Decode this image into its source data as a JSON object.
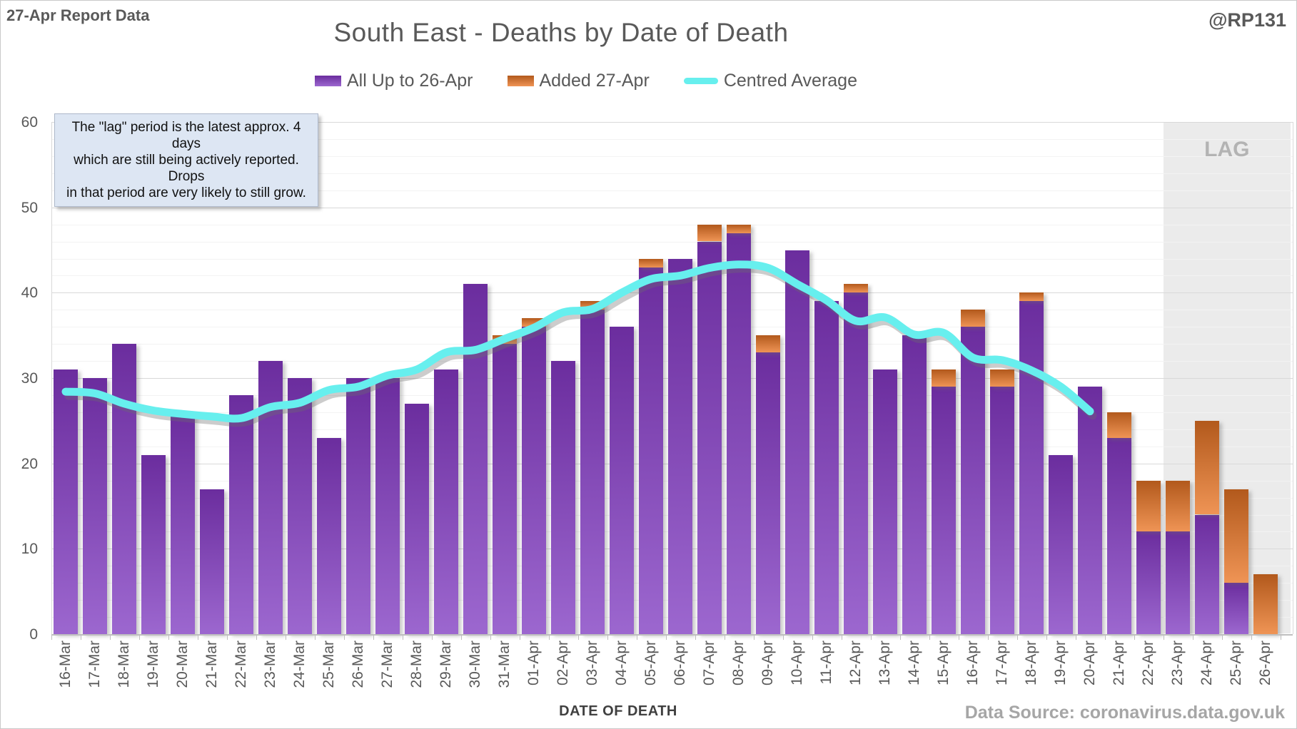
{
  "header": {
    "report_label": "27-Apr Report Data",
    "title": "South East - Deaths by Date of Death",
    "handle": "@RP131"
  },
  "legend": [
    {
      "label": "All Up to 26-Apr",
      "swatch": "purple-bar"
    },
    {
      "label": "Added 27-Apr",
      "swatch": "orange-bar"
    },
    {
      "label": "Centred Average",
      "swatch": "cyan-line"
    }
  ],
  "annotation": {
    "lines": [
      "The \"lag\" period is the latest approx. 4 days",
      "which are still being actively reported.  Drops",
      "in that period are very likely to still grow."
    ]
  },
  "lag": {
    "label": "LAG",
    "start_category": "23-Apr"
  },
  "axes": {
    "x_title": "DATE OF DEATH",
    "y_ticks": [
      0,
      10,
      20,
      30,
      40,
      50,
      60
    ],
    "y_minor_step": 2
  },
  "footer": {
    "source": "Data Source: coronavirus.data.gov.uk"
  },
  "colors": {
    "purple_top": "#6b2d9e",
    "purple_bottom": "#9c67cf",
    "orange_top": "#b2591c",
    "orange_bottom": "#ef9455",
    "cyan_line": "#67efee",
    "grid_major": "#d9d9d9",
    "grid_minor": "#f3f3f3",
    "lag_bg": "#ebebeb",
    "text_gray": "#595959"
  },
  "chart_data": {
    "type": "bar",
    "title": "South East - Deaths by Date of Death",
    "xlabel": "DATE OF DEATH",
    "ylabel": "",
    "ylim": [
      0,
      60
    ],
    "grid": true,
    "legend_position": "top",
    "categories": [
      "16-Mar",
      "17-Mar",
      "18-Mar",
      "19-Mar",
      "20-Mar",
      "21-Mar",
      "22-Mar",
      "23-Mar",
      "24-Mar",
      "25-Mar",
      "26-Mar",
      "27-Mar",
      "28-Mar",
      "29-Mar",
      "30-Mar",
      "31-Mar",
      "01-Apr",
      "02-Apr",
      "03-Apr",
      "04-Apr",
      "05-Apr",
      "06-Apr",
      "07-Apr",
      "08-Apr",
      "09-Apr",
      "10-Apr",
      "11-Apr",
      "12-Apr",
      "13-Apr",
      "14-Apr",
      "15-Apr",
      "16-Apr",
      "17-Apr",
      "18-Apr",
      "19-Apr",
      "20-Apr",
      "21-Apr",
      "22-Apr",
      "23-Apr",
      "24-Apr",
      "25-Apr",
      "26-Apr"
    ],
    "series": [
      {
        "name": "All Up to 26-Apr",
        "type": "bar",
        "values": [
          31,
          30,
          34,
          21,
          26,
          17,
          28,
          32,
          30,
          23,
          30,
          30,
          27,
          31,
          41,
          34,
          36,
          32,
          38,
          36,
          43,
          44,
          46,
          47,
          33,
          45,
          39,
          40,
          31,
          35,
          29,
          36,
          29,
          39,
          21,
          29,
          23,
          12,
          12,
          14,
          6,
          0
        ]
      },
      {
        "name": "Added 27-Apr",
        "type": "bar-stacked-on-previous",
        "values": [
          0,
          0,
          0,
          0,
          0,
          0,
          0,
          0,
          0,
          0,
          0,
          0,
          0,
          0,
          0,
          1,
          1,
          0,
          1,
          0,
          1,
          0,
          2,
          1,
          2,
          0,
          0,
          1,
          0,
          0,
          2,
          2,
          2,
          1,
          0,
          0,
          3,
          6,
          6,
          11,
          11,
          7
        ]
      },
      {
        "name": "Centred Average",
        "type": "line",
        "values": [
          28.4,
          28.2,
          27.0,
          26.2,
          25.8,
          25.5,
          25.3,
          26.6,
          27.1,
          28.6,
          29.0,
          30.3,
          31.0,
          33.0,
          33.3,
          34.6,
          35.9,
          37.7,
          38.1,
          40.0,
          41.6,
          42.0,
          42.9,
          43.3,
          42.9,
          41.0,
          39.1,
          36.7,
          37.1,
          35.1,
          35.3,
          32.4,
          32.1,
          30.9,
          29.0,
          26.1,
          null,
          null,
          null,
          null,
          null,
          null
        ]
      }
    ]
  }
}
